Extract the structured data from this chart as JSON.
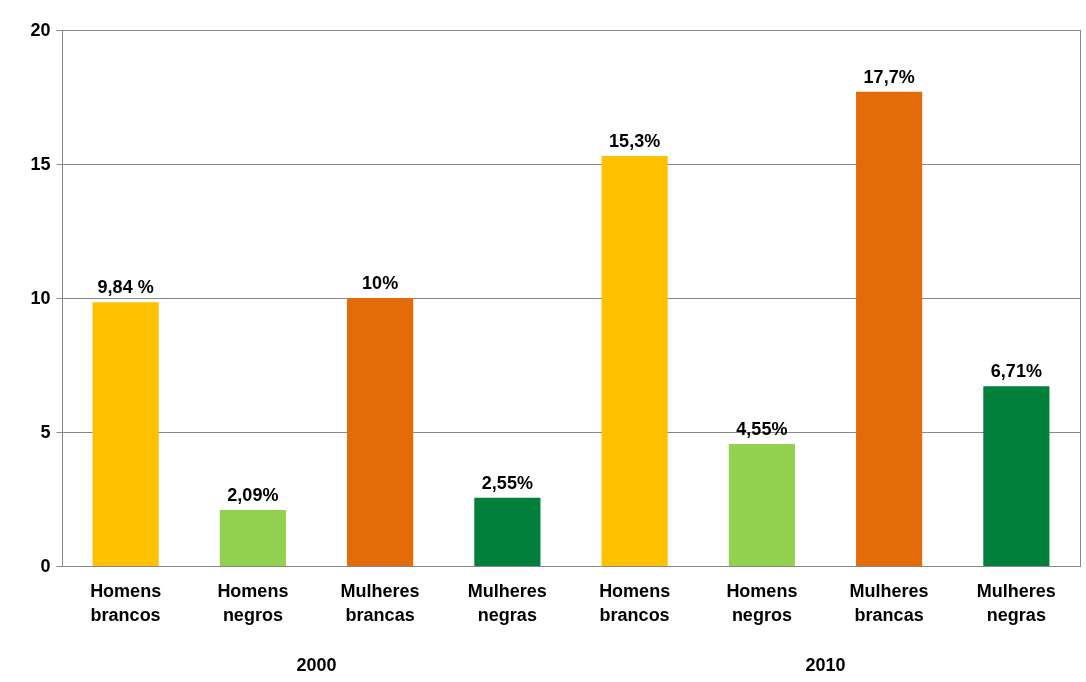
{
  "chart_data": {
    "type": "bar",
    "categories": [
      "Homens brancos",
      "Homens negros",
      "Mulheres brancas",
      "Mulheres negras",
      "Homens brancos",
      "Homens negros",
      "Mulheres brancas",
      "Mulheres negras"
    ],
    "values": [
      9.84,
      2.09,
      10,
      2.55,
      15.3,
      4.55,
      17.7,
      6.71
    ],
    "value_labels": [
      "9,84 %",
      "2,09%",
      "10%",
      "2,55%",
      "15,3%",
      "4,55%",
      "17,7%",
      "6,71%"
    ],
    "colors": [
      "#ffc000",
      "#92d050",
      "#e36c09",
      "#00803a",
      "#ffc000",
      "#92d050",
      "#e36c09",
      "#00803a"
    ],
    "ylim": [
      0,
      20
    ],
    "yticks": [
      0,
      5,
      10,
      15,
      20
    ],
    "grid": "y",
    "annotations": [
      "2000",
      "2010"
    ]
  }
}
